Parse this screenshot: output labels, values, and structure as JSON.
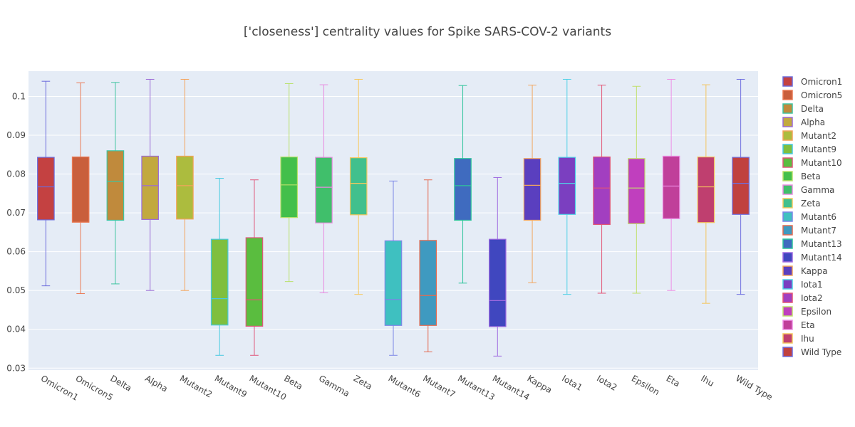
{
  "chart_data": {
    "type": "box",
    "title": "['closeness'] centrality values for Spike SARS-COV-2 variants",
    "xlabel": "",
    "ylabel": "",
    "ylim": [
      0.0295,
      0.1065
    ],
    "yticks": [
      0.03,
      0.04,
      0.05,
      0.06,
      0.07,
      0.08,
      0.09,
      0.1
    ],
    "ytick_labels": [
      "0.03",
      "0.04",
      "0.05",
      "0.06",
      "0.07",
      "0.08",
      "0.09",
      "0.1"
    ],
    "grid": true,
    "legend_position": "right",
    "series": [
      {
        "name": "Omicron1",
        "color": "#c44141",
        "edge": "#6b6bdb",
        "min": 0.0512,
        "q1": 0.0682,
        "median": 0.0767,
        "q3": 0.0843,
        "max": 0.1039
      },
      {
        "name": "Omicron5",
        "color": "#c95f3c",
        "edge": "#ea7a55",
        "min": 0.0492,
        "q1": 0.0676,
        "median": 0.0676,
        "q3": 0.0844,
        "max": 0.1035
      },
      {
        "name": "Delta",
        "color": "#c08a3c",
        "edge": "#3ec4a0",
        "min": 0.0517,
        "q1": 0.0681,
        "median": 0.0781,
        "q3": 0.086,
        "max": 0.1036
      },
      {
        "name": "Alpha",
        "color": "#c2a93f",
        "edge": "#9b6ad6",
        "min": 0.05,
        "q1": 0.0683,
        "median": 0.077,
        "q3": 0.0846,
        "max": 0.1044
      },
      {
        "name": "Mutant2",
        "color": "#acbc3e",
        "edge": "#f4a35a",
        "min": 0.05,
        "q1": 0.0684,
        "median": 0.077,
        "q3": 0.0846,
        "max": 0.1044
      },
      {
        "name": "Mutant9",
        "color": "#7fbf3f",
        "edge": "#47c9e0",
        "min": 0.0333,
        "q1": 0.0411,
        "median": 0.0479,
        "q3": 0.0632,
        "max": 0.0789
      },
      {
        "name": "Mutant10",
        "color": "#5abd3f",
        "edge": "#e0567a",
        "min": 0.0333,
        "q1": 0.0408,
        "median": 0.0476,
        "q3": 0.0636,
        "max": 0.0785
      },
      {
        "name": "Beta",
        "color": "#43bf4b",
        "edge": "#b9e06a",
        "min": 0.0523,
        "q1": 0.0688,
        "median": 0.0772,
        "q3": 0.0844,
        "max": 0.1033
      },
      {
        "name": "Gamma",
        "color": "#40bf6b",
        "edge": "#e98be0",
        "min": 0.0494,
        "q1": 0.0674,
        "median": 0.0766,
        "q3": 0.0843,
        "max": 0.103
      },
      {
        "name": "Zeta",
        "color": "#41c08d",
        "edge": "#f6c85e",
        "min": 0.049,
        "q1": 0.0695,
        "median": 0.0776,
        "q3": 0.0842,
        "max": 0.1044
      },
      {
        "name": "Mutant6",
        "color": "#3fc0c0",
        "edge": "#7b86e6",
        "min": 0.0333,
        "q1": 0.041,
        "median": 0.0477,
        "q3": 0.0628,
        "max": 0.0782
      },
      {
        "name": "Mutant7",
        "color": "#3f9ac0",
        "edge": "#e36b50",
        "min": 0.0342,
        "q1": 0.041,
        "median": 0.0487,
        "q3": 0.0629,
        "max": 0.0785
      },
      {
        "name": "Mutant13",
        "color": "#3f6bbf",
        "edge": "#2fc49b",
        "min": 0.0519,
        "q1": 0.0681,
        "median": 0.077,
        "q3": 0.084,
        "max": 0.1028
      },
      {
        "name": "Mutant14",
        "color": "#4047bf",
        "edge": "#9f6ae0",
        "min": 0.0331,
        "q1": 0.0407,
        "median": 0.0474,
        "q3": 0.0632,
        "max": 0.0791
      },
      {
        "name": "Kappa",
        "color": "#5a3fbf",
        "edge": "#f3a65e",
        "min": 0.052,
        "q1": 0.0681,
        "median": 0.0771,
        "q3": 0.084,
        "max": 0.1029
      },
      {
        "name": "Iota1",
        "color": "#7b3fc0",
        "edge": "#4fd0e6",
        "min": 0.049,
        "q1": 0.0696,
        "median": 0.0776,
        "q3": 0.0843,
        "max": 0.1044
      },
      {
        "name": "Iota2",
        "color": "#a23fc0",
        "edge": "#e25575",
        "min": 0.0493,
        "q1": 0.067,
        "median": 0.0764,
        "q3": 0.0844,
        "max": 0.1029
      },
      {
        "name": "Epsilon",
        "color": "#c03fbe",
        "edge": "#c1e06c",
        "min": 0.0493,
        "q1": 0.0672,
        "median": 0.0764,
        "q3": 0.084,
        "max": 0.1026
      },
      {
        "name": "Eta",
        "color": "#c03f9a",
        "edge": "#ee8ee5",
        "min": 0.05,
        "q1": 0.0685,
        "median": 0.0769,
        "q3": 0.0846,
        "max": 0.1044
      },
      {
        "name": "Ihu",
        "color": "#bf3f6f",
        "edge": "#f4c55e",
        "min": 0.0467,
        "q1": 0.0675,
        "median": 0.0767,
        "q3": 0.0844,
        "max": 0.103
      },
      {
        "name": "Wild Type",
        "color": "#c0413f",
        "edge": "#6f6fe0",
        "min": 0.049,
        "q1": 0.0696,
        "median": 0.0776,
        "q3": 0.0843,
        "max": 0.1044
      }
    ]
  }
}
